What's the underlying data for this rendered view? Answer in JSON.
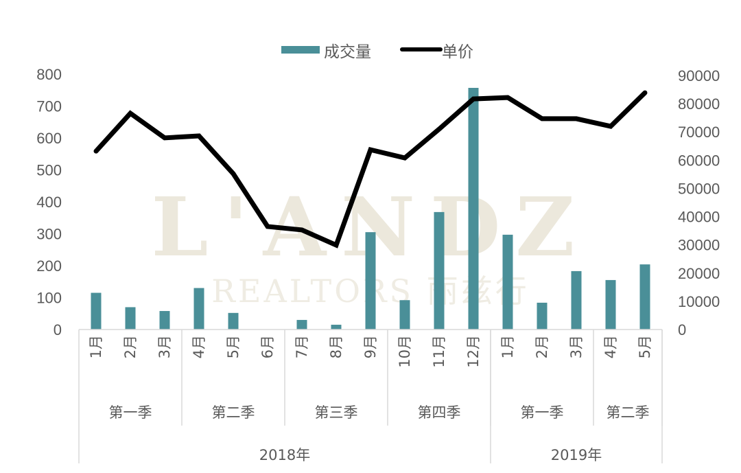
{
  "chart_data": {
    "type": "bar+line",
    "title": "",
    "legend": {
      "position": "top",
      "entries": [
        {
          "label": "成交量",
          "type": "bar",
          "color": "#4a8f98"
        },
        {
          "label": "单价",
          "type": "line",
          "color": "#000000"
        }
      ]
    },
    "categories": [
      "1月",
      "2月",
      "3月",
      "4月",
      "5月",
      "6月",
      "7月",
      "8月",
      "9月",
      "10月",
      "11月",
      "12月",
      "1月",
      "2月",
      "3月",
      "4月",
      "5月"
    ],
    "quarter_groups": [
      {
        "label": "第一季",
        "span": 3
      },
      {
        "label": "第二季",
        "span": 3
      },
      {
        "label": "第三季",
        "span": 3
      },
      {
        "label": "第四季",
        "span": 3
      },
      {
        "label": "第一季",
        "span": 3
      },
      {
        "label": "第二季",
        "span": 2
      }
    ],
    "year_groups": [
      {
        "label": "2018年",
        "span": 12
      },
      {
        "label": "2019年",
        "span": 5
      }
    ],
    "series": [
      {
        "name": "成交量",
        "type": "bar",
        "axis": "left",
        "color": "#4a8f98",
        "values": [
          115,
          70,
          58,
          130,
          52,
          0,
          30,
          15,
          305,
          92,
          368,
          757,
          297,
          84,
          183,
          155,
          204
        ]
      },
      {
        "name": "单价",
        "type": "line",
        "axis": "right",
        "color": "#000000",
        "values": [
          63200,
          76600,
          67900,
          68600,
          55200,
          36500,
          35300,
          29900,
          63700,
          60800,
          71000,
          81700,
          82200,
          74700,
          74700,
          72000,
          83900
        ]
      }
    ],
    "left_axis": {
      "min": 0,
      "max": 800,
      "step": 100,
      "ticks": [
        "0",
        "100",
        "200",
        "300",
        "400",
        "500",
        "600",
        "700",
        "800"
      ]
    },
    "right_axis": {
      "min": 0,
      "max": 90000,
      "step": 10000,
      "ticks": [
        "0",
        "10000",
        "20000",
        "30000",
        "40000",
        "50000",
        "60000",
        "70000",
        "80000",
        "90000"
      ]
    },
    "xlabel": "",
    "ylabel": "",
    "grid": false
  },
  "watermark": {
    "line1": "L'ANDZ",
    "line2": "REALTORS 丽兹行"
  }
}
